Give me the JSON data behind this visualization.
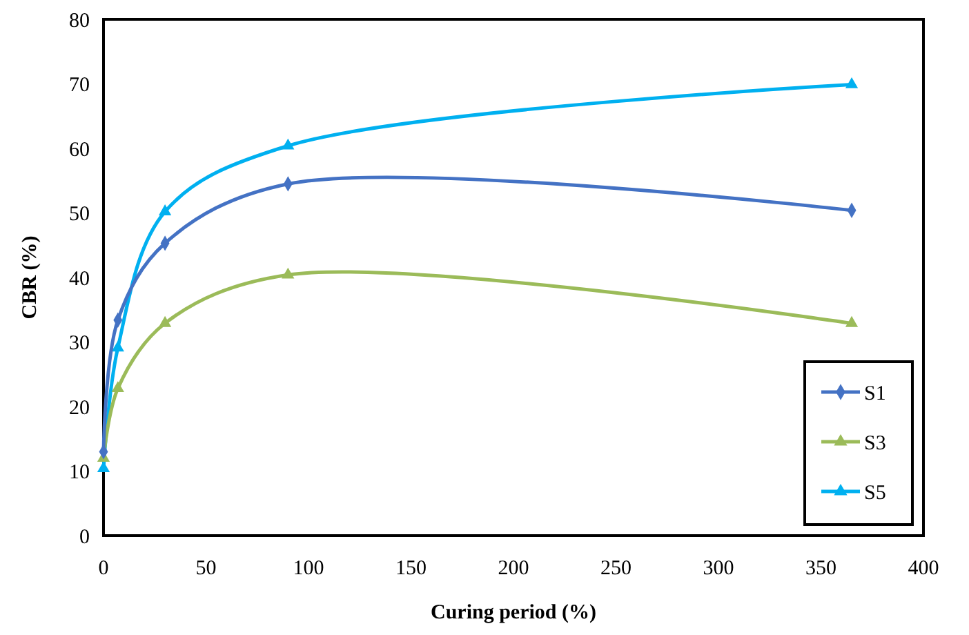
{
  "chart_data": {
    "type": "line",
    "xlabel": "Curing period (%)",
    "ylabel": "CBR (%)",
    "x": [
      0,
      7,
      30,
      90,
      365
    ],
    "series": [
      {
        "name": "S1",
        "color": "#4472c4",
        "marker": "diamond",
        "values": [
          13.0,
          33.4,
          45.3,
          54.5,
          50.4
        ]
      },
      {
        "name": "S3",
        "color": "#9bbb59",
        "marker": "triangle",
        "values": [
          12.0,
          22.8,
          32.9,
          40.4,
          32.9
        ]
      },
      {
        "name": "S5",
        "color": "#00b0f0",
        "marker": "triangle",
        "values": [
          10.4,
          29.1,
          50.2,
          60.4,
          69.9
        ]
      }
    ],
    "xlim": [
      0,
      400
    ],
    "xticks": [
      0,
      50,
      100,
      150,
      200,
      250,
      300,
      350,
      400
    ],
    "ylim": [
      0,
      80
    ],
    "yticks": [
      0,
      10,
      20,
      30,
      40,
      50,
      60,
      70,
      80
    ],
    "grid": false,
    "legend": "bottom right",
    "line_style": "solid"
  }
}
